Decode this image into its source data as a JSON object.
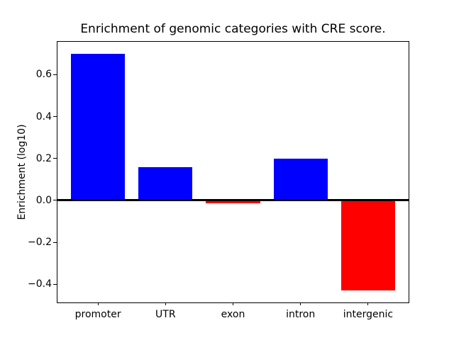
{
  "figure": {
    "background": "#ffffff"
  },
  "chart_data": {
    "type": "bar",
    "title": "Enrichment of genomic categories with CRE score.",
    "xlabel": "",
    "ylabel": "Enrichment (log10)",
    "categories": [
      "promoter",
      "UTR",
      "exon",
      "intron",
      "intergenic"
    ],
    "values": [
      0.7,
      0.16,
      -0.015,
      0.2,
      -0.43
    ],
    "bar_colors": [
      "#0000ff",
      "#0000ff",
      "#ff0000",
      "#0000ff",
      "#ff0000"
    ],
    "positive_color": "#0000ff",
    "negative_color": "#ff0000",
    "bar_width": 0.8,
    "xlim": [
      -0.6,
      4.6
    ],
    "ylim": [
      -0.487,
      0.757
    ],
    "yticks": [
      -0.4,
      -0.2,
      0.0,
      0.2,
      0.4,
      0.6
    ],
    "ytick_labels": [
      "−0.4",
      "−0.2",
      "0.0",
      "0.2",
      "0.4",
      "0.6"
    ],
    "grid": false,
    "legend": false,
    "zero_line": true,
    "zero_line_color": "#000000",
    "axis_color": "#000000"
  }
}
